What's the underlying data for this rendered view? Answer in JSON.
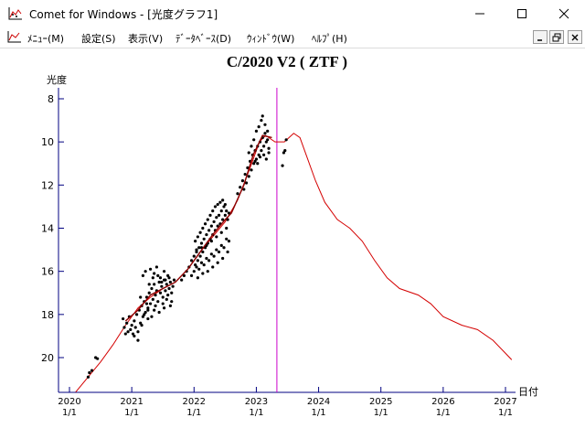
{
  "window": {
    "title": "Comet for Windows - [光度グラフ1]",
    "app_icon": "chart-app-icon",
    "controls": [
      "minimize-icon",
      "maximize-icon",
      "close-icon"
    ]
  },
  "menubar": {
    "items": [
      {
        "label": "ﾒﾆｭｰ(M)"
      },
      {
        "label": "設定(S)"
      },
      {
        "label": "表示(V)"
      },
      {
        "label": "ﾃﾞｰﾀﾍﾞｰｽ(D)"
      },
      {
        "label": "ｳｨﾝﾄﾞｳ(W)"
      },
      {
        "label": "ﾍﾙﾌﾟ(H)"
      }
    ],
    "mdi_controls": [
      "mdi-minimize-icon",
      "mdi-restore-icon",
      "mdi-close-icon"
    ]
  },
  "chart_data": {
    "type": "scatter",
    "title": "C/2020 V2 ( ZTF )",
    "ylabel": "光度",
    "xlabel": "日付",
    "ylim": [
      21.5,
      7.5
    ],
    "y_inverted": true,
    "y_ticks": [
      8,
      10,
      12,
      14,
      16,
      18,
      20
    ],
    "xlim": [
      2020.0,
      2027.2
    ],
    "x_ticks": [
      {
        "x": 2020,
        "label_top": "2020",
        "label_bottom": "1/1"
      },
      {
        "x": 2021,
        "label_top": "2021",
        "label_bottom": "1/1"
      },
      {
        "x": 2022,
        "label_top": "2022",
        "label_bottom": "1/1"
      },
      {
        "x": 2023,
        "label_top": "2023",
        "label_bottom": "1/1"
      },
      {
        "x": 2024,
        "label_top": "2024",
        "label_bottom": "1/1"
      },
      {
        "x": 2025,
        "label_top": "2025",
        "label_bottom": "1/1"
      },
      {
        "x": 2026,
        "label_top": "2026",
        "label_bottom": "1/1"
      },
      {
        "x": 2027,
        "label_top": "2027",
        "label_bottom": "1/1"
      }
    ],
    "current_date_line": 2023.33,
    "colors": {
      "observations": "#000000",
      "prediction": "#d40000",
      "today_line": "#cc00cc",
      "axis": "#000080",
      "fit": "#8b0000"
    },
    "observations": [
      [
        2020.3,
        20.9
      ],
      [
        2020.32,
        20.7
      ],
      [
        2020.36,
        20.6
      ],
      [
        2020.42,
        20.0
      ],
      [
        2020.45,
        20.05
      ],
      [
        2020.86,
        18.2
      ],
      [
        2020.88,
        18.6
      ],
      [
        2020.9,
        18.9
      ],
      [
        2020.92,
        18.4
      ],
      [
        2020.94,
        18.8
      ],
      [
        2020.96,
        18.1
      ],
      [
        2020.98,
        18.7
      ],
      [
        2021.0,
        18.5
      ],
      [
        2021.02,
        18.9
      ],
      [
        2021.04,
        18.3
      ],
      [
        2021.06,
        18.6
      ],
      [
        2021.08,
        18.0
      ],
      [
        2021.1,
        19.2
      ],
      [
        2021.12,
        17.8
      ],
      [
        2021.14,
        18.4
      ],
      [
        2021.16,
        17.6
      ],
      [
        2021.18,
        18.1
      ],
      [
        2021.2,
        17.4
      ],
      [
        2021.22,
        17.9
      ],
      [
        2021.24,
        17.2
      ],
      [
        2021.26,
        17.7
      ],
      [
        2021.28,
        17.0
      ],
      [
        2021.3,
        17.5
      ],
      [
        2021.32,
        16.8
      ],
      [
        2021.34,
        17.3
      ],
      [
        2021.36,
        16.6
      ],
      [
        2021.38,
        17.1
      ],
      [
        2021.4,
        16.9
      ],
      [
        2021.42,
        17.4
      ],
      [
        2021.44,
        16.5
      ],
      [
        2021.46,
        17.0
      ],
      [
        2021.48,
        16.7
      ],
      [
        2021.5,
        17.2
      ],
      [
        2021.52,
        16.4
      ],
      [
        2021.54,
        16.9
      ],
      [
        2021.56,
        16.6
      ],
      [
        2021.58,
        17.1
      ],
      [
        2021.6,
        16.8
      ],
      [
        2021.62,
        16.5
      ],
      [
        2021.64,
        17.0
      ],
      [
        2021.66,
        16.7
      ],
      [
        2021.18,
        16.2
      ],
      [
        2021.22,
        16.0
      ],
      [
        2021.3,
        15.9
      ],
      [
        2021.36,
        16.1
      ],
      [
        2021.4,
        15.8
      ],
      [
        2021.46,
        16.3
      ],
      [
        2021.52,
        16.0
      ],
      [
        2021.58,
        16.2
      ],
      [
        2021.2,
        18.0
      ],
      [
        2021.26,
        17.8
      ],
      [
        2021.32,
        18.1
      ],
      [
        2021.38,
        17.6
      ],
      [
        2021.44,
        17.9
      ],
      [
        2021.5,
        17.5
      ],
      [
        2021.56,
        17.3
      ],
      [
        2021.62,
        17.6
      ],
      [
        2021.14,
        17.2
      ],
      [
        2021.24,
        17.5
      ],
      [
        2021.28,
        16.6
      ],
      [
        2021.34,
        16.3
      ],
      [
        2021.42,
        16.2
      ],
      [
        2021.48,
        16.5
      ],
      [
        2021.54,
        16.4
      ],
      [
        2021.6,
        16.3
      ],
      [
        2021.68,
        16.4
      ],
      [
        2021.04,
        19.0
      ],
      [
        2021.1,
        18.8
      ],
      [
        2021.16,
        18.5
      ],
      [
        2021.26,
        18.2
      ],
      [
        2021.36,
        17.8
      ],
      [
        2021.52,
        17.7
      ],
      [
        2021.64,
        17.4
      ],
      [
        2021.8,
        16.4
      ],
      [
        2021.84,
        16.2
      ],
      [
        2021.88,
        16.0
      ],
      [
        2021.92,
        15.8
      ],
      [
        2021.96,
        15.5
      ],
      [
        2022.0,
        15.3
      ],
      [
        2022.02,
        15.7
      ],
      [
        2022.04,
        15.1
      ],
      [
        2022.06,
        15.5
      ],
      [
        2022.08,
        14.9
      ],
      [
        2022.1,
        15.3
      ],
      [
        2022.12,
        14.7
      ],
      [
        2022.14,
        15.1
      ],
      [
        2022.16,
        14.5
      ],
      [
        2022.18,
        14.9
      ],
      [
        2022.2,
        14.3
      ],
      [
        2022.22,
        14.7
      ],
      [
        2022.24,
        14.1
      ],
      [
        2022.26,
        14.5
      ],
      [
        2022.28,
        13.9
      ],
      [
        2022.3,
        14.3
      ],
      [
        2022.32,
        13.7
      ],
      [
        2022.34,
        14.1
      ],
      [
        2022.36,
        13.5
      ],
      [
        2022.38,
        13.9
      ],
      [
        2022.4,
        13.4
      ],
      [
        2022.42,
        13.8
      ],
      [
        2022.44,
        13.2
      ],
      [
        2022.46,
        13.6
      ],
      [
        2022.48,
        13.0
      ],
      [
        2022.5,
        13.4
      ],
      [
        2022.52,
        13.2
      ],
      [
        2022.54,
        13.6
      ],
      [
        2022.56,
        13.3
      ],
      [
        2021.96,
        16.2
      ],
      [
        2022.0,
        16.0
      ],
      [
        2022.04,
        15.8
      ],
      [
        2022.08,
        15.9
      ],
      [
        2022.12,
        15.6
      ],
      [
        2022.16,
        15.7
      ],
      [
        2022.2,
        15.4
      ],
      [
        2022.24,
        15.5
      ],
      [
        2022.28,
        15.2
      ],
      [
        2022.32,
        15.3
      ],
      [
        2022.36,
        15.0
      ],
      [
        2022.4,
        15.1
      ],
      [
        2022.44,
        14.8
      ],
      [
        2022.48,
        14.9
      ],
      [
        2022.52,
        14.5
      ],
      [
        2022.56,
        14.6
      ],
      [
        2022.02,
        14.6
      ],
      [
        2022.06,
        14.4
      ],
      [
        2022.1,
        14.2
      ],
      [
        2022.14,
        14.0
      ],
      [
        2022.18,
        13.8
      ],
      [
        2022.22,
        13.6
      ],
      [
        2022.26,
        13.4
      ],
      [
        2022.3,
        13.2
      ],
      [
        2022.34,
        13.0
      ],
      [
        2022.38,
        12.9
      ],
      [
        2022.42,
        12.8
      ],
      [
        2022.46,
        12.7
      ],
      [
        2022.5,
        12.9
      ],
      [
        2022.06,
        16.3
      ],
      [
        2022.14,
        16.1
      ],
      [
        2022.22,
        16.0
      ],
      [
        2022.3,
        15.8
      ],
      [
        2022.38,
        15.6
      ],
      [
        2022.46,
        15.4
      ],
      [
        2022.54,
        15.1
      ],
      [
        2022.04,
        15.0
      ],
      [
        2022.12,
        14.9
      ],
      [
        2022.2,
        14.8
      ],
      [
        2022.28,
        14.6
      ],
      [
        2022.36,
        14.4
      ],
      [
        2022.44,
        14.2
      ],
      [
        2022.52,
        14.0
      ],
      [
        2022.7,
        12.4
      ],
      [
        2022.74,
        12.1
      ],
      [
        2022.78,
        11.8
      ],
      [
        2022.8,
        12.2
      ],
      [
        2022.82,
        11.5
      ],
      [
        2022.84,
        11.9
      ],
      [
        2022.86,
        11.2
      ],
      [
        2022.88,
        11.6
      ],
      [
        2022.9,
        10.9
      ],
      [
        2022.92,
        11.3
      ],
      [
        2022.94,
        10.6
      ],
      [
        2022.96,
        11.0
      ],
      [
        2022.98,
        10.4
      ],
      [
        2023.0,
        10.8
      ],
      [
        2023.02,
        10.2
      ],
      [
        2023.04,
        10.6
      ],
      [
        2023.06,
        10.0
      ],
      [
        2023.08,
        10.4
      ],
      [
        2023.1,
        9.8
      ],
      [
        2023.12,
        10.2
      ],
      [
        2023.14,
        9.6
      ],
      [
        2023.16,
        10.0
      ],
      [
        2023.18,
        9.9
      ],
      [
        2023.2,
        10.3
      ],
      [
        2022.96,
        9.9
      ],
      [
        2023.0,
        9.5
      ],
      [
        2023.04,
        9.3
      ],
      [
        2023.08,
        9.0
      ],
      [
        2023.1,
        8.8
      ],
      [
        2023.14,
        9.2
      ],
      [
        2023.18,
        9.5
      ],
      [
        2022.88,
        10.5
      ],
      [
        2022.92,
        10.2
      ],
      [
        2022.98,
        10.9
      ],
      [
        2023.02,
        11.0
      ],
      [
        2023.06,
        10.7
      ],
      [
        2023.12,
        10.6
      ],
      [
        2023.16,
        10.8
      ],
      [
        2023.2,
        10.5
      ],
      [
        2023.42,
        11.1
      ],
      [
        2023.44,
        10.5
      ],
      [
        2023.46,
        10.4
      ],
      [
        2023.48,
        9.9
      ]
    ],
    "fit_curve": [
      [
        2020.9,
        18.3
      ],
      [
        2021.1,
        17.8
      ],
      [
        2021.3,
        17.1
      ],
      [
        2021.5,
        16.8
      ],
      [
        2021.7,
        16.5
      ],
      [
        2021.9,
        15.9
      ],
      [
        2022.1,
        15.1
      ],
      [
        2022.3,
        14.3
      ],
      [
        2022.5,
        13.6
      ],
      [
        2022.6,
        13.3
      ],
      [
        2022.8,
        12.0
      ],
      [
        2022.95,
        10.6
      ],
      [
        2023.1,
        9.7
      ],
      [
        2023.25,
        9.8
      ]
    ],
    "prediction_curve": [
      [
        2020.1,
        21.6
      ],
      [
        2020.3,
        20.9
      ],
      [
        2020.5,
        20.2
      ],
      [
        2020.7,
        19.4
      ],
      [
        2020.9,
        18.5
      ],
      [
        2021.1,
        17.7
      ],
      [
        2021.3,
        17.2
      ],
      [
        2021.5,
        16.8
      ],
      [
        2021.7,
        16.5
      ],
      [
        2021.9,
        15.9
      ],
      [
        2022.1,
        15.1
      ],
      [
        2022.3,
        14.4
      ],
      [
        2022.5,
        13.7
      ],
      [
        2022.7,
        12.7
      ],
      [
        2022.9,
        11.2
      ],
      [
        2023.05,
        10.0
      ],
      [
        2023.15,
        9.7
      ],
      [
        2023.3,
        10.0
      ],
      [
        2023.45,
        10.0
      ],
      [
        2023.6,
        9.6
      ],
      [
        2023.7,
        9.8
      ],
      [
        2023.8,
        10.6
      ],
      [
        2023.95,
        11.8
      ],
      [
        2024.1,
        12.8
      ],
      [
        2024.3,
        13.6
      ],
      [
        2024.5,
        14.0
      ],
      [
        2024.7,
        14.6
      ],
      [
        2024.9,
        15.5
      ],
      [
        2025.1,
        16.3
      ],
      [
        2025.3,
        16.8
      ],
      [
        2025.6,
        17.1
      ],
      [
        2025.8,
        17.5
      ],
      [
        2026.0,
        18.1
      ],
      [
        2026.3,
        18.5
      ],
      [
        2026.55,
        18.7
      ],
      [
        2026.8,
        19.2
      ],
      [
        2027.0,
        19.8
      ],
      [
        2027.1,
        20.1
      ]
    ]
  }
}
